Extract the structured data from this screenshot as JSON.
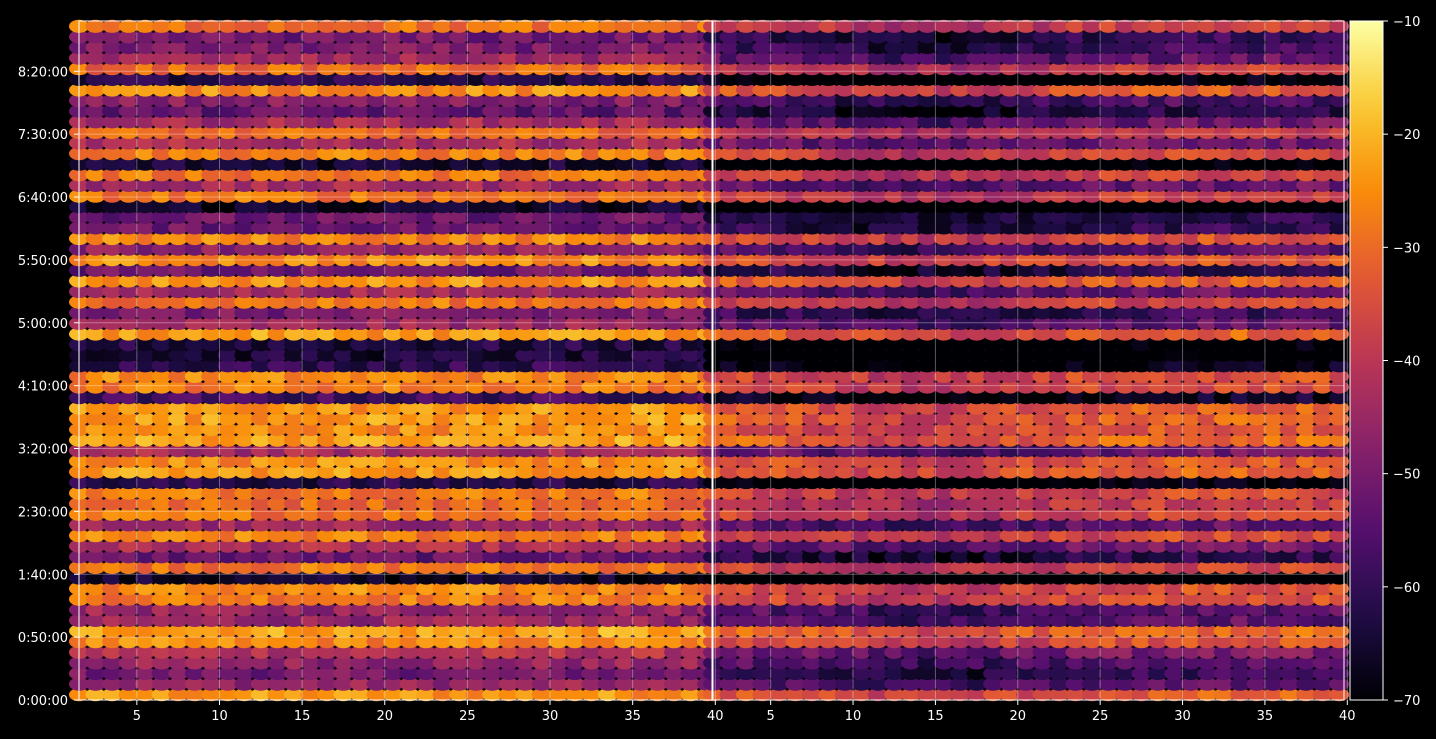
{
  "chart_data": {
    "type": "heatmap",
    "title": "",
    "xlabel": "",
    "ylabel": "",
    "panels": [
      {
        "name": "",
        "xlim": [
          1.5,
          39.8
        ],
        "xticks": [
          5,
          10,
          15,
          20,
          25,
          30,
          35,
          40
        ],
        "columns": 39,
        "cmin": -70,
        "cmax": -10,
        "offset_db": 0
      },
      {
        "name": "",
        "xlim": [
          1.5,
          39.8
        ],
        "xticks": [
          5,
          10,
          15,
          20,
          25,
          30,
          35,
          40
        ],
        "columns": 39,
        "cmin": -70,
        "cmax": -10,
        "offset_db": -8
      }
    ],
    "y_axis": {
      "unit": "h:mm:ss",
      "range_seconds": [
        0,
        32400
      ],
      "ticks": [
        "0:00:00",
        "0:50:00",
        "1:40:00",
        "2:30:00",
        "3:20:00",
        "4:10:00",
        "5:00:00",
        "5:50:00",
        "6:40:00",
        "7:30:00",
        "8:20:00"
      ]
    },
    "colorbar": {
      "colormap": "inferno",
      "range": [
        -70,
        -10
      ],
      "ticks": [
        "−10",
        "−20",
        "−30",
        "−40",
        "−50",
        "−60",
        "−70"
      ]
    },
    "grid": true,
    "rows": 64,
    "hot_rows": [
      {
        "row": 0,
        "level": -24
      },
      {
        "row": 5,
        "level": -26
      },
      {
        "row": 6,
        "level": -22
      },
      {
        "row": 9,
        "level": -27
      },
      {
        "row": 10,
        "level": -26
      },
      {
        "row": 12,
        "level": -28
      },
      {
        "row": 15,
        "level": -27
      },
      {
        "row": 17,
        "level": -28
      },
      {
        "row": 18,
        "level": -30
      },
      {
        "row": 19,
        "level": -27
      },
      {
        "row": 21,
        "level": -23
      },
      {
        "row": 22,
        "level": -25
      },
      {
        "row": 24,
        "level": -22
      },
      {
        "row": 25,
        "level": -25
      },
      {
        "row": 26,
        "level": -23
      },
      {
        "row": 27,
        "level": -24
      },
      {
        "row": 29,
        "level": -27
      },
      {
        "row": 30,
        "level": -26
      },
      {
        "row": 34,
        "level": -23
      },
      {
        "row": 37,
        "level": -28
      },
      {
        "row": 39,
        "level": -24
      },
      {
        "row": 41,
        "level": -25
      },
      {
        "row": 43,
        "level": -26
      },
      {
        "row": 47,
        "level": -28
      },
      {
        "row": 49,
        "level": -28
      },
      {
        "row": 51,
        "level": -27
      },
      {
        "row": 53,
        "level": -30
      },
      {
        "row": 57,
        "level": -25
      },
      {
        "row": 59,
        "level": -30
      },
      {
        "row": 63,
        "level": -29
      }
    ],
    "cold_rows": [
      {
        "row": 11,
        "level": -66
      },
      {
        "row": 20,
        "level": -62
      },
      {
        "row": 28,
        "level": -58
      },
      {
        "row": 31,
        "level": -60
      },
      {
        "row": 32,
        "level": -64
      },
      {
        "row": 33,
        "level": -63
      },
      {
        "row": 46,
        "level": -66
      },
      {
        "row": 50,
        "level": -64
      },
      {
        "row": 58,
        "level": -62
      }
    ]
  }
}
